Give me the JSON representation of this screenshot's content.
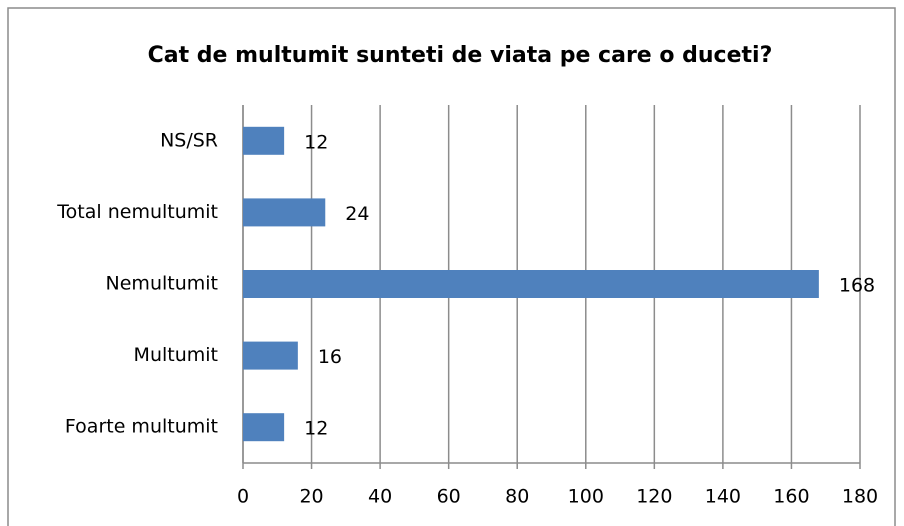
{
  "chart_data": {
    "type": "bar",
    "orientation": "horizontal",
    "title": "Cat de multumit sunteti de viata pe care o duceti?",
    "categories": [
      "NS/SR",
      "Total nemultumit",
      "Nemultumit",
      "Multumit",
      "Foarte multumit"
    ],
    "values": [
      12,
      24,
      168,
      16,
      12
    ],
    "color": "#4f81bd",
    "xlim": [
      0,
      180
    ],
    "xticks": [
      0,
      20,
      40,
      60,
      80,
      100,
      120,
      140,
      160,
      180
    ],
    "grid": true
  }
}
